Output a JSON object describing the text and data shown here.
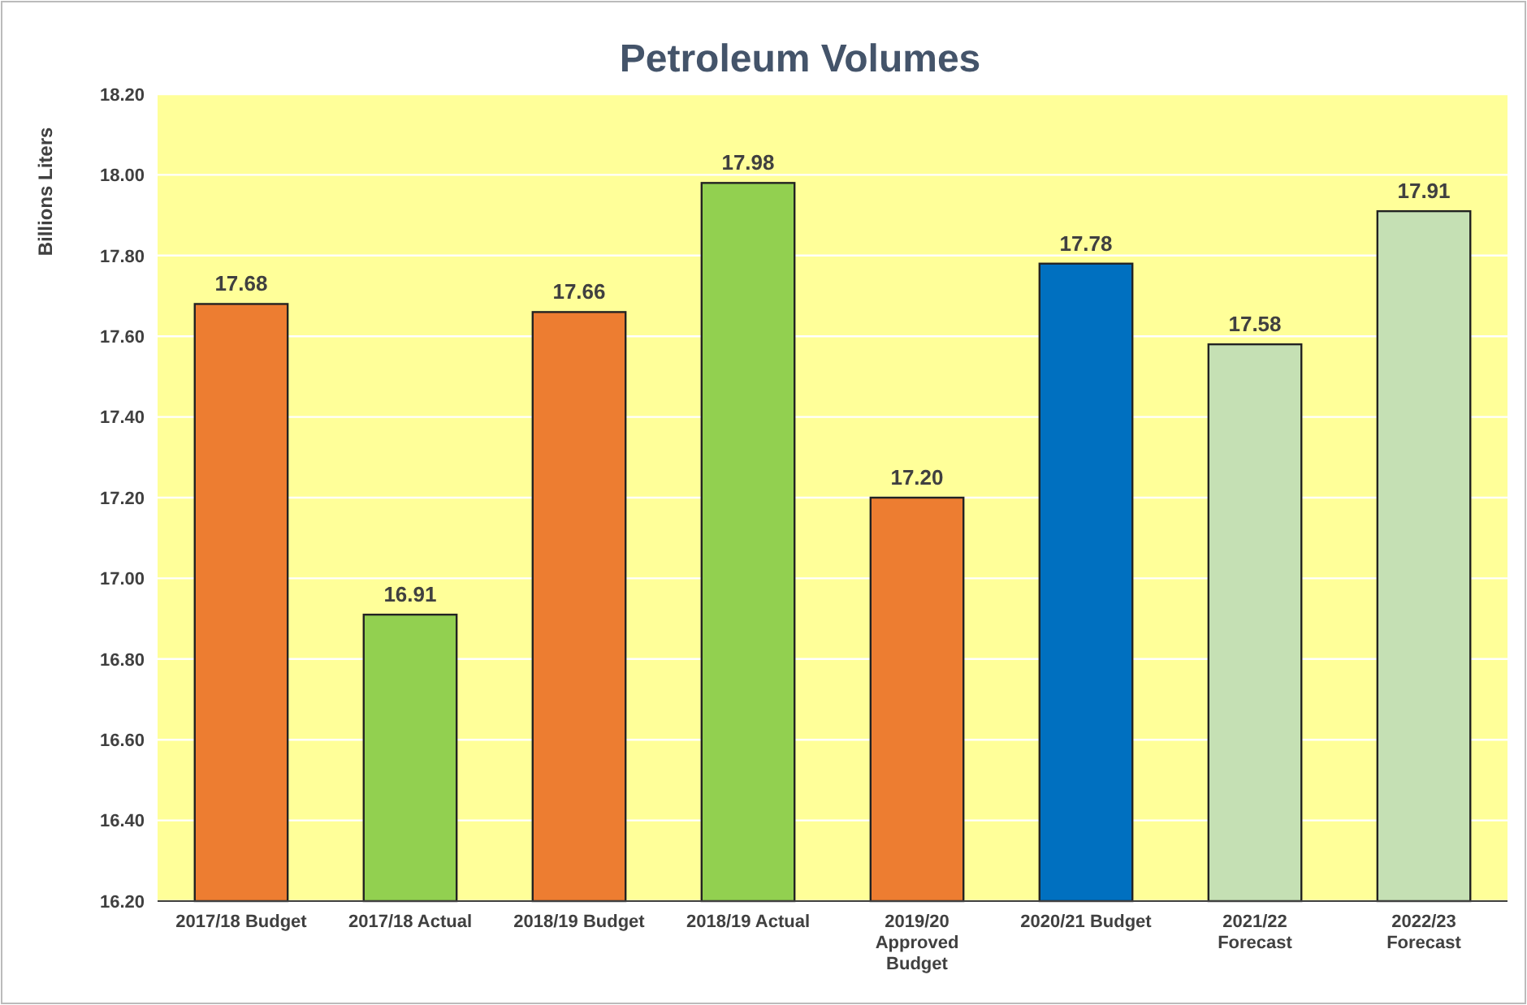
{
  "chart_data": {
    "type": "bar",
    "title": "Petroleum Volumes",
    "ylabel": "Billions Liters",
    "categories": [
      "2017/18 Budget",
      "2017/18 Actual",
      "2018/19 Budget",
      "2018/19 Actual",
      "2019/20 Approved Budget",
      "2020/21 Budget",
      "2021/22 Forecast",
      "2022/23 Forecast"
    ],
    "values": [
      17.68,
      16.91,
      17.66,
      17.98,
      17.2,
      17.78,
      17.58,
      17.91
    ],
    "colors": [
      "#ed7d31",
      "#92d050",
      "#ed7d31",
      "#92d050",
      "#ed7d31",
      "#0070c0",
      "#c5e0b4",
      "#c5e0b4"
    ],
    "value_labels": [
      "17.68",
      "16.91",
      "17.66",
      "17.98",
      "17.20",
      "17.78",
      "17.58",
      "17.91"
    ],
    "ylim": [
      16.2,
      18.2
    ],
    "yticks": [
      {
        "value": 16.2,
        "label": "16.20"
      },
      {
        "value": 16.4,
        "label": "16.40"
      },
      {
        "value": 16.6,
        "label": "16.60"
      },
      {
        "value": 16.8,
        "label": "16.80"
      },
      {
        "value": 17.0,
        "label": "17.00"
      },
      {
        "value": 17.2,
        "label": "17.20"
      },
      {
        "value": 17.4,
        "label": "17.40"
      },
      {
        "value": 17.6,
        "label": "17.60"
      },
      {
        "value": 17.8,
        "label": "17.80"
      },
      {
        "value": 18.0,
        "label": "18.00"
      },
      {
        "value": 18.2,
        "label": "18.20"
      }
    ],
    "grid": "y"
  }
}
